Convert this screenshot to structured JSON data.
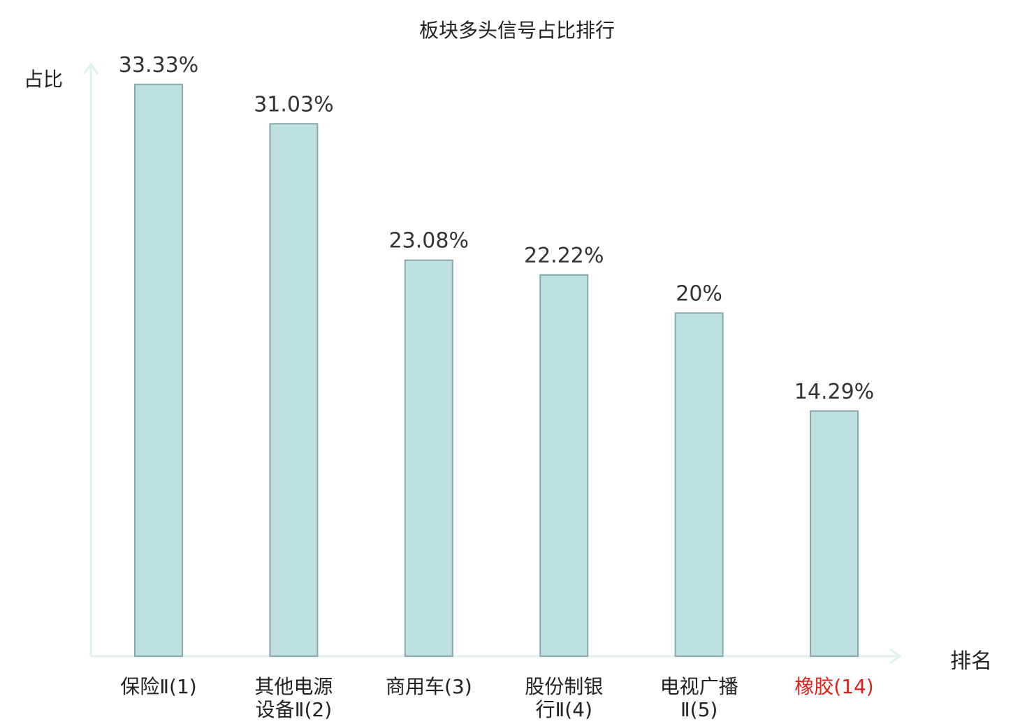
{
  "chart_data": {
    "type": "bar",
    "title": "板块多头信号占比排行",
    "ylabel": "占比",
    "xlabel": "排名",
    "categories": [
      [
        "保险Ⅱ(1)"
      ],
      [
        "其他电源",
        "设备Ⅱ(2)"
      ],
      [
        "商用车(3)"
      ],
      [
        "股份制银",
        "行Ⅱ(4)"
      ],
      [
        "电视广播",
        "Ⅱ(5)"
      ],
      [
        "橡胶(14)"
      ]
    ],
    "values": [
      33.33,
      31.03,
      23.08,
      22.22,
      20,
      14.29
    ],
    "value_labels": [
      "33.33%",
      "31.03%",
      "23.08%",
      "22.22%",
      "20%",
      "14.29%"
    ],
    "highlight_index": 5,
    "ylim": [
      0,
      34.5
    ],
    "grid": false,
    "colors": {
      "bar_fill": "#bde0e3",
      "bar_stroke": "#8aa8ac",
      "axis": "#e0f2f0",
      "label_text": "#222222",
      "value_text": "#333333",
      "highlight_text": "#e0201c"
    }
  }
}
